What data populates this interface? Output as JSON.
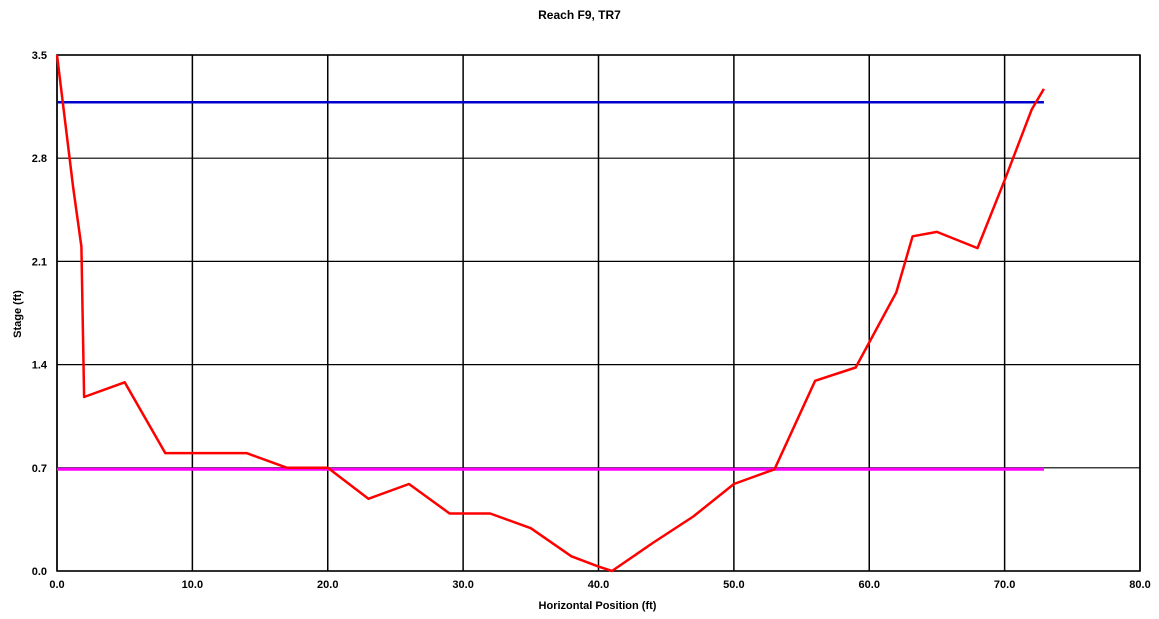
{
  "chart_data": {
    "type": "line",
    "title": "Reach F9, TR7",
    "xlabel": "Horizontal Position (ft)",
    "ylabel": "Stage (ft)",
    "xlim": [
      0,
      80
    ],
    "ylim": [
      0,
      3.5
    ],
    "x_ticks": [
      "0.0",
      "10.0",
      "20.0",
      "30.0",
      "40.0",
      "50.0",
      "60.0",
      "70.0",
      "80.0"
    ],
    "y_ticks": [
      "0.0",
      "0.7",
      "1.4",
      "2.1",
      "2.8",
      "3.5"
    ],
    "grid": true,
    "colors": {
      "profile": "#ff0000",
      "upper_line": "#0000cc",
      "lower_line": "#ff00ff"
    },
    "series": [
      {
        "values_xy": [
          [
            0.0,
            3.5
          ],
          [
            1.2,
            2.6
          ],
          [
            1.8,
            2.2
          ],
          [
            2.0,
            1.18
          ],
          [
            5.0,
            1.28
          ],
          [
            8.0,
            0.8
          ],
          [
            14.0,
            0.8
          ],
          [
            17.0,
            0.7
          ],
          [
            20.0,
            0.7
          ],
          [
            23.0,
            0.49
          ],
          [
            26.0,
            0.59
          ],
          [
            29.0,
            0.39
          ],
          [
            32.0,
            0.39
          ],
          [
            35.0,
            0.29
          ],
          [
            38.0,
            0.1
          ],
          [
            40.0,
            0.03
          ],
          [
            41.0,
            0.0
          ],
          [
            44.0,
            0.19
          ],
          [
            47.0,
            0.37
          ],
          [
            50.0,
            0.59
          ],
          [
            53.0,
            0.69
          ],
          [
            56.0,
            1.29
          ],
          [
            59.0,
            1.38
          ],
          [
            62.0,
            1.89
          ],
          [
            63.2,
            2.27
          ],
          [
            65.0,
            2.3
          ],
          [
            68.0,
            2.19
          ],
          [
            70.0,
            2.65
          ],
          [
            72.0,
            3.13
          ],
          [
            72.9,
            3.27
          ]
        ]
      },
      {
        "values_xy": [
          [
            0.0,
            3.18
          ],
          [
            72.9,
            3.18
          ]
        ]
      },
      {
        "values_xy": [
          [
            0.0,
            0.69
          ],
          [
            72.9,
            0.69
          ]
        ]
      }
    ]
  }
}
